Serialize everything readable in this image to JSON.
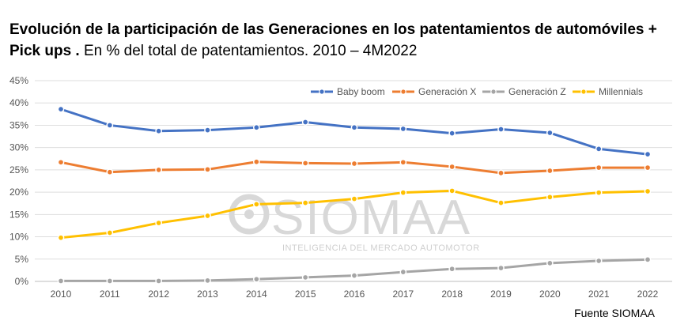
{
  "title": {
    "bold": "Evolución de la participación de las Generaciones en los patentamientos de automóviles + Pick ups .",
    "subtitle": "En % del total de patentamientos. 2010 – 4M2022"
  },
  "watermark": {
    "brand": "SIOMAA",
    "tagline": "INTELIGENCIA DEL MERCADO AUTOMOTOR"
  },
  "source": "Fuente SIOMAA",
  "chart_data": {
    "type": "line",
    "title": "Evolución de la participación de las Generaciones en los patentamientos de automóviles + Pick ups .",
    "subtitle": "En % del total de patentamientos. 2010 – 4M2022",
    "categories": [
      "2010",
      "2011",
      "2012",
      "2013",
      "2014",
      "2015",
      "2016",
      "2017",
      "2018",
      "2019",
      "2020",
      "2021",
      "2022"
    ],
    "ylim": [
      0,
      45
    ],
    "yticks": [
      0,
      5,
      10,
      15,
      20,
      25,
      30,
      35,
      40,
      45
    ],
    "ytick_labels": [
      "0%",
      "5%",
      "10%",
      "15%",
      "20%",
      "25%",
      "30%",
      "35%",
      "40%",
      "45%"
    ],
    "grid": true,
    "legend_position": "top-right",
    "series": [
      {
        "name": "Baby boom",
        "color": "#4472C4",
        "values": [
          38.6,
          35.0,
          33.7,
          33.9,
          34.5,
          35.7,
          34.5,
          34.2,
          33.2,
          34.1,
          33.3,
          29.7,
          28.5
        ]
      },
      {
        "name": "Generación X",
        "color": "#ED7D31",
        "values": [
          26.7,
          24.5,
          25.0,
          25.1,
          26.8,
          26.5,
          26.4,
          26.7,
          25.7,
          24.3,
          24.8,
          25.5,
          25.5
        ]
      },
      {
        "name": "Generación Z",
        "color": "#A5A5A5",
        "values": [
          0.1,
          0.1,
          0.1,
          0.2,
          0.5,
          0.9,
          1.3,
          2.1,
          2.8,
          3.0,
          4.1,
          4.6,
          4.9
        ]
      },
      {
        "name": "Millennials",
        "color": "#FFC000",
        "values": [
          9.8,
          10.9,
          13.1,
          14.7,
          17.3,
          17.6,
          18.5,
          19.9,
          20.3,
          17.6,
          18.9,
          19.9,
          20.2
        ]
      }
    ]
  }
}
